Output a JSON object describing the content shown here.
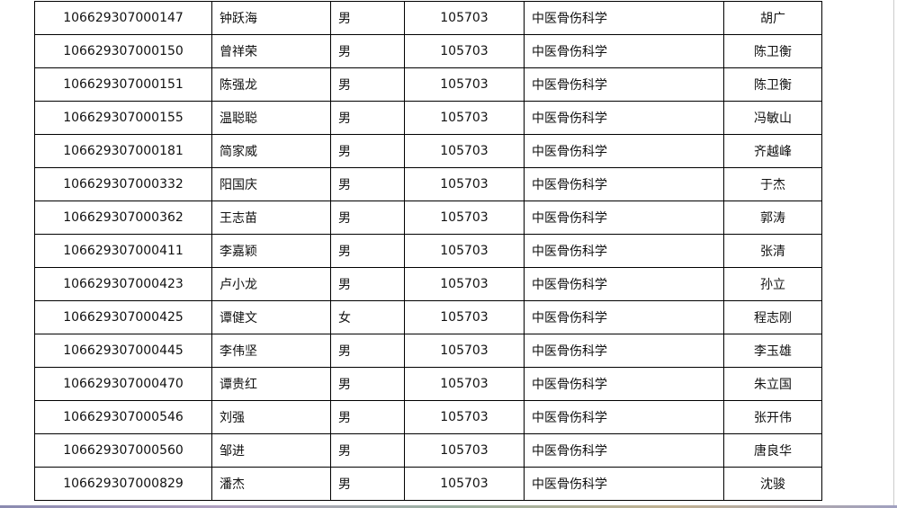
{
  "rows": [
    [
      "106629307000147",
      "钟跃海",
      "男",
      "105703",
      "中医骨伤科学",
      "胡广"
    ],
    [
      "106629307000150",
      "曾祥荣",
      "男",
      "105703",
      "中医骨伤科学",
      "陈卫衡"
    ],
    [
      "106629307000151",
      "陈强龙",
      "男",
      "105703",
      "中医骨伤科学",
      "陈卫衡"
    ],
    [
      "106629307000155",
      "温聪聪",
      "男",
      "105703",
      "中医骨伤科学",
      "冯敏山"
    ],
    [
      "106629307000181",
      "简家威",
      "男",
      "105703",
      "中医骨伤科学",
      "齐越峰"
    ],
    [
      "106629307000332",
      "阳国庆",
      "男",
      "105703",
      "中医骨伤科学",
      "于杰"
    ],
    [
      "106629307000362",
      "王志苗",
      "男",
      "105703",
      "中医骨伤科学",
      "郭涛"
    ],
    [
      "106629307000411",
      "李嘉颖",
      "男",
      "105703",
      "中医骨伤科学",
      "张清"
    ],
    [
      "106629307000423",
      "卢小龙",
      "男",
      "105703",
      "中医骨伤科学",
      "孙立"
    ],
    [
      "106629307000425",
      "谭健文",
      "女",
      "105703",
      "中医骨伤科学",
      "程志刚"
    ],
    [
      "106629307000445",
      "李伟坚",
      "男",
      "105703",
      "中医骨伤科学",
      "李玉雄"
    ],
    [
      "106629307000470",
      "谭贵红",
      "男",
      "105703",
      "中医骨伤科学",
      "朱立国"
    ],
    [
      "106629307000546",
      "刘强",
      "男",
      "105703",
      "中医骨伤科学",
      "张开伟"
    ],
    [
      "106629307000560",
      "邹进",
      "男",
      "105703",
      "中医骨伤科学",
      "唐良华"
    ],
    [
      "106629307000829",
      "潘杰",
      "男",
      "105703",
      "中医骨伤科学",
      "沈骏"
    ]
  ]
}
